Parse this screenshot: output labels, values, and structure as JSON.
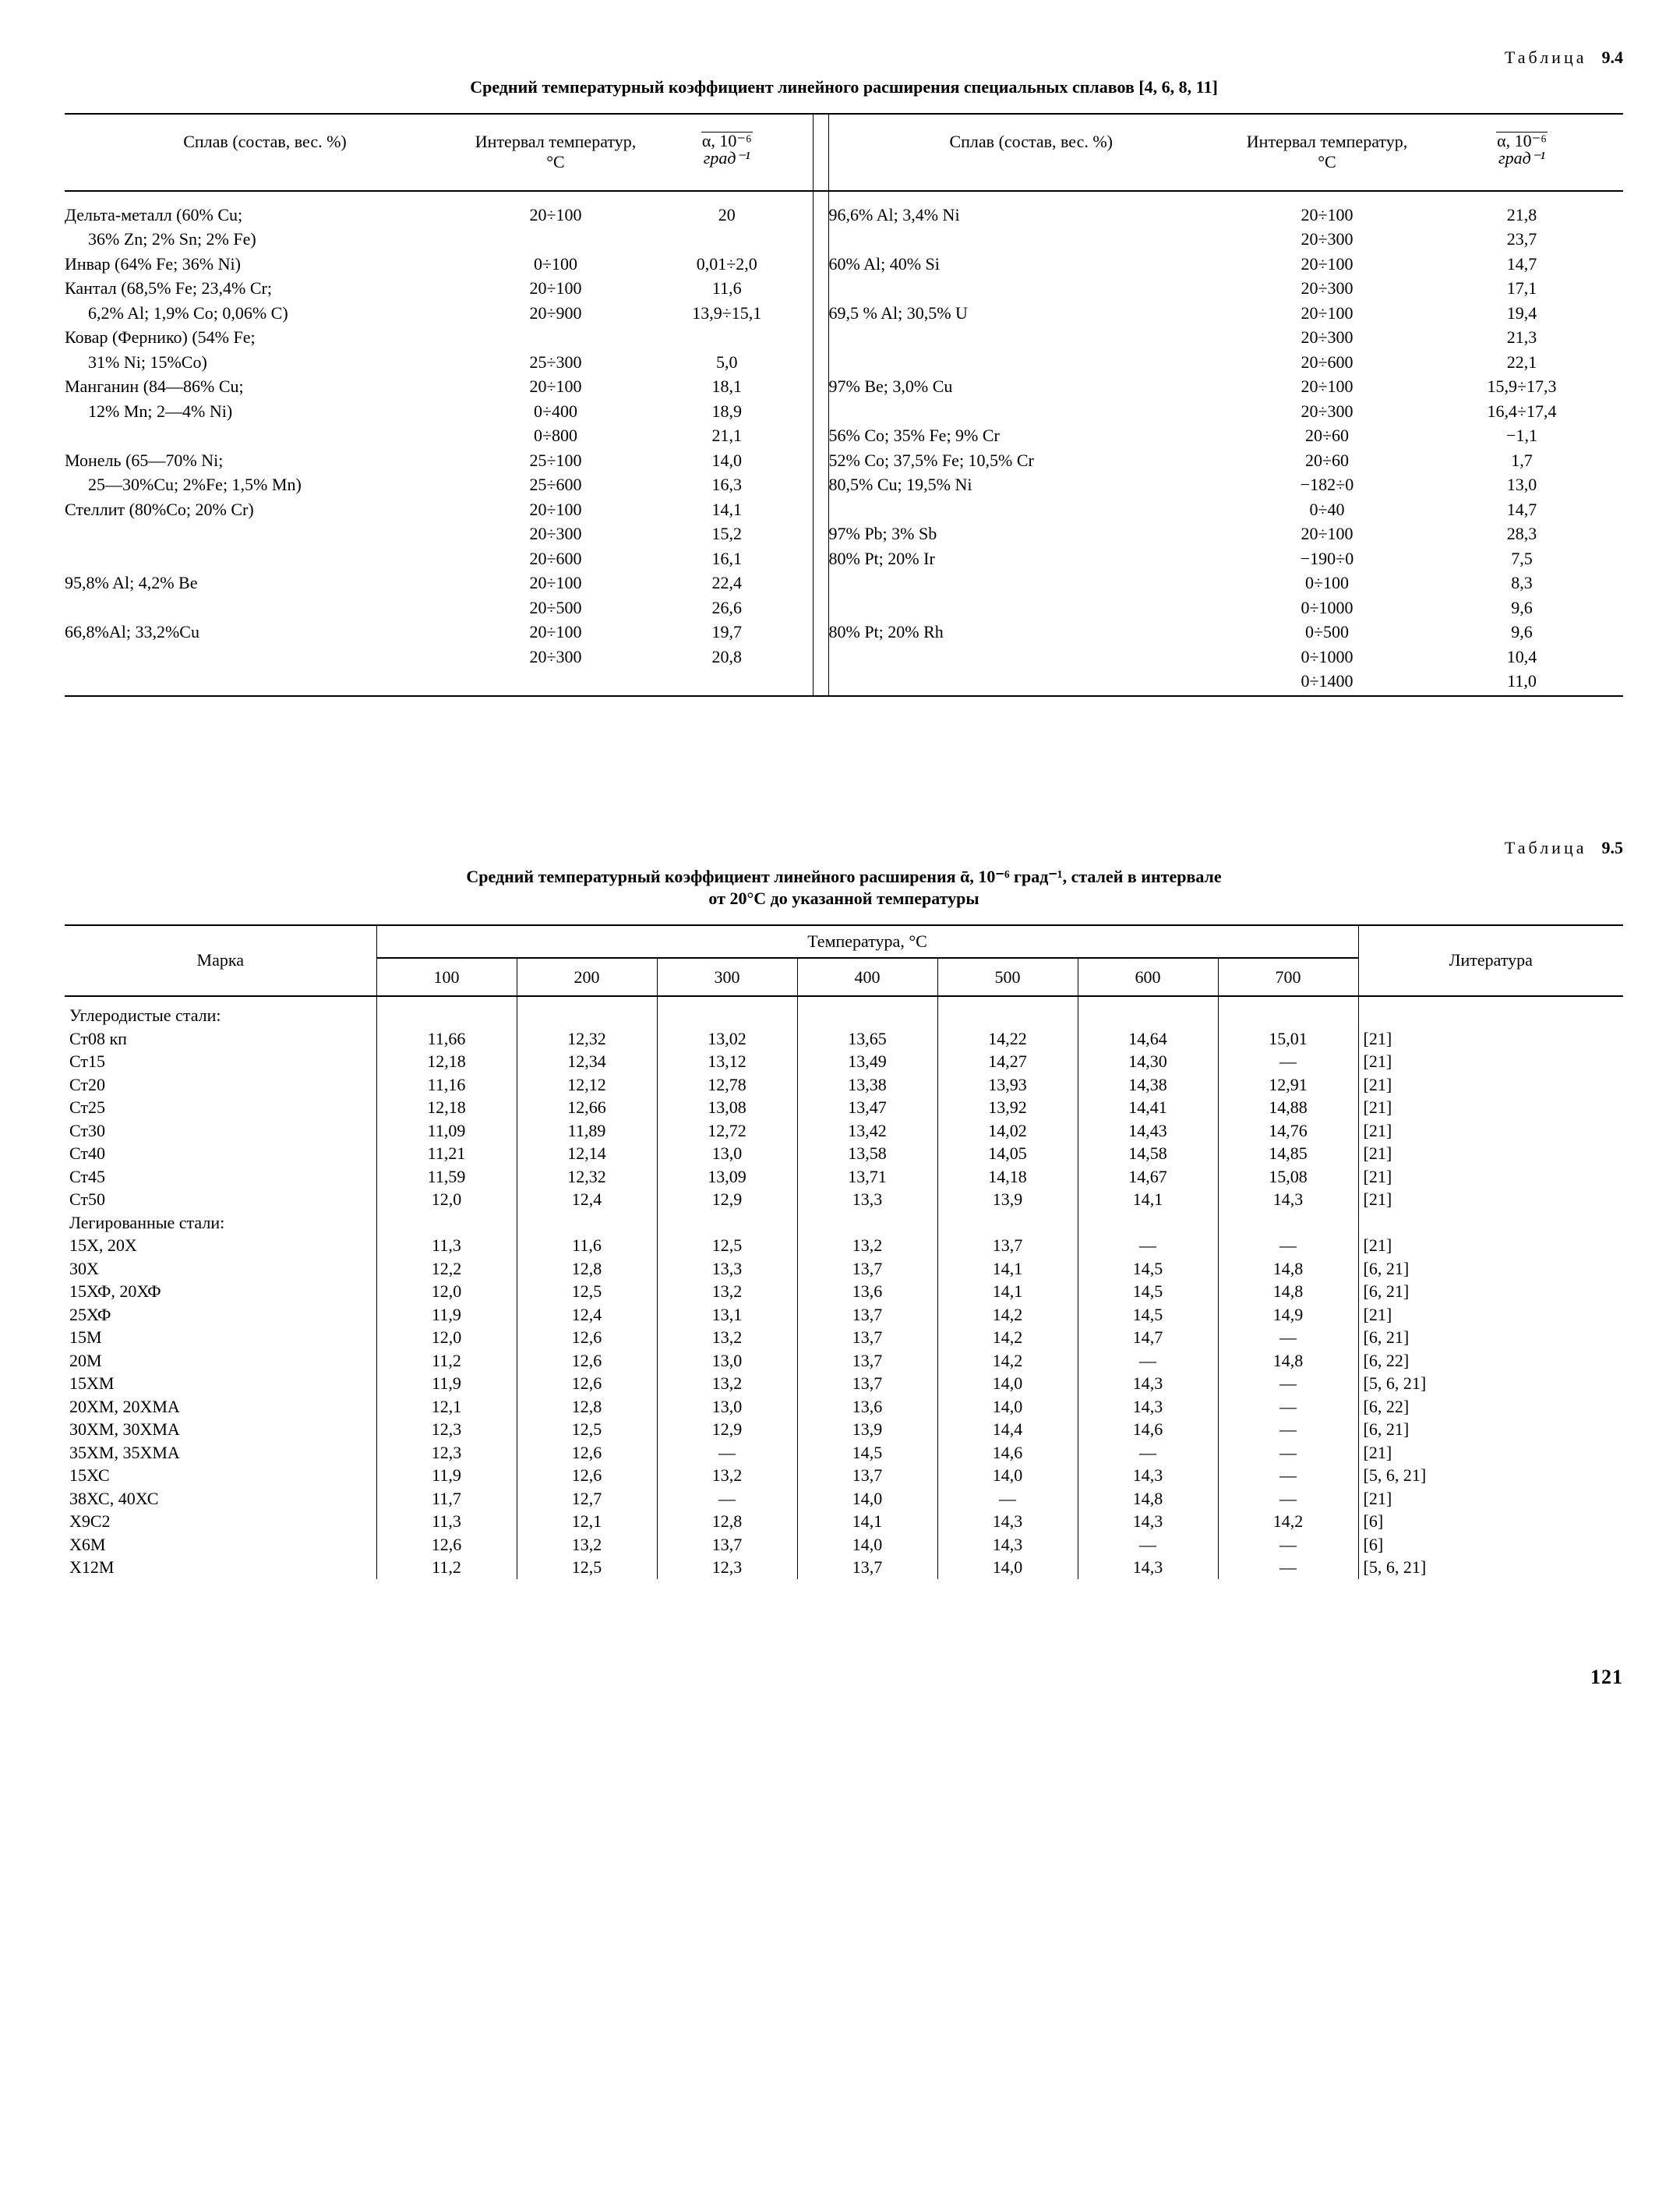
{
  "page_number": "121",
  "table94": {
    "label_prefix": "Таблица",
    "label_num": "9.4",
    "caption": "Средний температурный коэффициент линейного расширения специальных сплавов [4, 6, 8, 11]",
    "head": {
      "alloy": "Сплав (состав, вес. %)",
      "interval": "Интервал температур, °С",
      "alpha_unit_top": "α, 10⁻⁶",
      "alpha_unit_bot": "град⁻¹"
    },
    "left": [
      {
        "alloy": "Дельта-металл (60% Cu;",
        "t": "20÷100",
        "a": "20"
      },
      {
        "alloy_indent": "36% Zn; 2% Sn; 2% Fe)",
        "t": "",
        "a": ""
      },
      {
        "alloy": "Инвар (64% Fe; 36% Ni)",
        "t": "0÷100",
        "a": "0,01÷2,0"
      },
      {
        "alloy": "Кантал (68,5% Fe;  23,4% Cr;",
        "t": "20÷100",
        "a": "11,6"
      },
      {
        "alloy_indent": "6,2% Al; 1,9% Co; 0,06% C)",
        "t": "20÷900",
        "a": "13,9÷15,1"
      },
      {
        "alloy": "Ковар (Фернико)  (54% Fe;",
        "t": "",
        "a": ""
      },
      {
        "alloy_indent": "31% Ni; 15%Co)",
        "t": "25÷300",
        "a": "5,0"
      },
      {
        "alloy": "Манганин  (84—86% Cu;",
        "t": "20÷100",
        "a": "18,1"
      },
      {
        "alloy_indent": "12% Mn; 2—4% Ni)",
        "t": "0÷400",
        "a": "18,9"
      },
      {
        "alloy": "",
        "t": "0÷800",
        "a": "21,1"
      },
      {
        "alloy": "Монель  (65—70% Ni;",
        "t": "25÷100",
        "a": "14,0"
      },
      {
        "alloy_indent": "25—30%Cu; 2%Fe; 1,5% Mn)",
        "t": "25÷600",
        "a": "16,3"
      },
      {
        "alloy": "Стеллит (80%Co; 20% Cr)",
        "t": "20÷100",
        "a": "14,1"
      },
      {
        "alloy": "",
        "t": "20÷300",
        "a": "15,2"
      },
      {
        "alloy": "",
        "t": "20÷600",
        "a": "16,1"
      },
      {
        "alloy": "95,8% Al; 4,2% Be",
        "t": "20÷100",
        "a": "22,4"
      },
      {
        "alloy": "",
        "t": "20÷500",
        "a": "26,6"
      },
      {
        "alloy": "66,8%Al; 33,2%Cu",
        "t": "20÷100",
        "a": "19,7"
      },
      {
        "alloy": "",
        "t": "20÷300",
        "a": "20,8"
      }
    ],
    "right": [
      {
        "alloy": "96,6% Al; 3,4% Ni",
        "t": "20÷100",
        "a": "21,8"
      },
      {
        "alloy": "",
        "t": "20÷300",
        "a": "23,7"
      },
      {
        "alloy": "60% Al; 40% Si",
        "t": "20÷100",
        "a": "14,7"
      },
      {
        "alloy": "",
        "t": "20÷300",
        "a": "17,1"
      },
      {
        "alloy": "69,5 % Al; 30,5% U",
        "t": "20÷100",
        "a": "19,4"
      },
      {
        "alloy": "",
        "t": "20÷300",
        "a": "21,3"
      },
      {
        "alloy": "",
        "t": "20÷600",
        "a": "22,1"
      },
      {
        "alloy": "97% Be; 3,0% Cu",
        "t": "20÷100",
        "a": "15,9÷17,3"
      },
      {
        "alloy": "",
        "t": "20÷300",
        "a": "16,4÷17,4"
      },
      {
        "alloy": "56% Co; 35% Fe; 9% Cr",
        "t": "20÷60",
        "a": "−1,1"
      },
      {
        "alloy": "52% Co; 37,5% Fe; 10,5% Cr",
        "t": "20÷60",
        "a": "1,7"
      },
      {
        "alloy": "80,5% Cu; 19,5% Ni",
        "t": "−182÷0",
        "a": "13,0"
      },
      {
        "alloy": "",
        "t": "0÷40",
        "a": "14,7"
      },
      {
        "alloy": "97% Pb; 3% Sb",
        "t": "20÷100",
        "a": "28,3"
      },
      {
        "alloy": "80% Pt; 20% Ir",
        "t": "−190÷0",
        "a": "7,5"
      },
      {
        "alloy": "",
        "t": "0÷100",
        "a": "8,3"
      },
      {
        "alloy": "",
        "t": "0÷1000",
        "a": "9,6"
      },
      {
        "alloy": "80% Pt; 20% Rh",
        "t": "0÷500",
        "a": "9,6"
      },
      {
        "alloy": "",
        "t": "0÷1000",
        "a": "10,4"
      },
      {
        "alloy": "",
        "t": "0÷1400",
        "a": "11,0"
      }
    ]
  },
  "table95": {
    "label_prefix": "Таблица",
    "label_num": "9.5",
    "caption_line1": "Средний температурный коэффициент линейного расширения ᾱ, 10⁻⁶ град⁻¹, сталей в интервале",
    "caption_line2": "от 20°С до указанной температуры",
    "head": {
      "brand": "Марка",
      "temp_group": "Температура, °С",
      "lit": "Литература",
      "temps": [
        "100",
        "200",
        "300",
        "400",
        "500",
        "600",
        "700"
      ]
    },
    "section1": "Углеродистые стали:",
    "section2": "Легированные стали:",
    "rows1": [
      {
        "m": "Ст08 кп",
        "v": [
          "11,66",
          "12,32",
          "13,02",
          "13,65",
          "14,22",
          "14,64",
          "15,01"
        ],
        "l": "[21]"
      },
      {
        "m": "Ст15",
        "v": [
          "12,18",
          "12,34",
          "13,12",
          "13,49",
          "14,27",
          "14,30",
          "—"
        ],
        "l": "[21]"
      },
      {
        "m": "Ст20",
        "v": [
          "11,16",
          "12,12",
          "12,78",
          "13,38",
          "13,93",
          "14,38",
          "12,91"
        ],
        "l": "[21]"
      },
      {
        "m": "Ст25",
        "v": [
          "12,18",
          "12,66",
          "13,08",
          "13,47",
          "13,92",
          "14,41",
          "14,88"
        ],
        "l": "[21]"
      },
      {
        "m": "Ст30",
        "v": [
          "11,09",
          "11,89",
          "12,72",
          "13,42",
          "14,02",
          "14,43",
          "14,76"
        ],
        "l": "[21]"
      },
      {
        "m": "Ст40",
        "v": [
          "11,21",
          "12,14",
          "13,0",
          "13,58",
          "14,05",
          "14,58",
          "14,85"
        ],
        "l": "[21]"
      },
      {
        "m": "Ст45",
        "v": [
          "11,59",
          "12,32",
          "13,09",
          "13,71",
          "14,18",
          "14,67",
          "15,08"
        ],
        "l": "[21]"
      },
      {
        "m": "Ст50",
        "v": [
          "12,0",
          "12,4",
          "12,9",
          "13,3",
          "13,9",
          "14,1",
          "14,3"
        ],
        "l": "[21]"
      }
    ],
    "rows2": [
      {
        "m": "15Х, 20Х",
        "v": [
          "11,3",
          "11,6",
          "12,5",
          "13,2",
          "13,7",
          "—",
          "—"
        ],
        "l": "[21]"
      },
      {
        "m": "30Х",
        "v": [
          "12,2",
          "12,8",
          "13,3",
          "13,7",
          "14,1",
          "14,5",
          "14,8"
        ],
        "l": "[6, 21]"
      },
      {
        "m": "15ХФ, 20ХФ",
        "v": [
          "12,0",
          "12,5",
          "13,2",
          "13,6",
          "14,1",
          "14,5",
          "14,8"
        ],
        "l": "[6, 21]"
      },
      {
        "m": "25ХФ",
        "v": [
          "11,9",
          "12,4",
          "13,1",
          "13,7",
          "14,2",
          "14,5",
          "14,9"
        ],
        "l": "[21]"
      },
      {
        "m": "15М",
        "v": [
          "12,0",
          "12,6",
          "13,2",
          "13,7",
          "14,2",
          "14,7",
          "—"
        ],
        "l": "[6, 21]"
      },
      {
        "m": "20М",
        "v": [
          "11,2",
          "12,6",
          "13,0",
          "13,7",
          "14,2",
          "—",
          "14,8"
        ],
        "l": "[6, 22]"
      },
      {
        "m": "15ХМ",
        "v": [
          "11,9",
          "12,6",
          "13,2",
          "13,7",
          "14,0",
          "14,3",
          "—"
        ],
        "l": "[5, 6, 21]"
      },
      {
        "m": "20ХМ, 20ХМА",
        "v": [
          "12,1",
          "12,8",
          "13,0",
          "13,6",
          "14,0",
          "14,3",
          "—"
        ],
        "l": "[6, 22]"
      },
      {
        "m": "30ХМ, 30ХМА",
        "v": [
          "12,3",
          "12,5",
          "12,9",
          "13,9",
          "14,4",
          "14,6",
          "—"
        ],
        "l": "[6, 21]"
      },
      {
        "m": "35ХМ, 35ХМА",
        "v": [
          "12,3",
          "12,6",
          "—",
          "14,5",
          "14,6",
          "—",
          "—"
        ],
        "l": "[21]"
      },
      {
        "m": "15ХС",
        "v": [
          "11,9",
          "12,6",
          "13,2",
          "13,7",
          "14,0",
          "14,3",
          "—"
        ],
        "l": "[5, 6, 21]"
      },
      {
        "m": "38ХС, 40ХС",
        "v": [
          "11,7",
          "12,7",
          "—",
          "14,0",
          "—",
          "14,8",
          "—"
        ],
        "l": "[21]"
      },
      {
        "m": "Х9С2",
        "v": [
          "11,3",
          "12,1",
          "12,8",
          "14,1",
          "14,3",
          "14,3",
          "14,2"
        ],
        "l": "[6]"
      },
      {
        "m": "Х6М",
        "v": [
          "12,6",
          "13,2",
          "13,7",
          "14,0",
          "14,3",
          "—",
          "—"
        ],
        "l": "[6]"
      },
      {
        "m": "Х12М",
        "v": [
          "11,2",
          "12,5",
          "12,3",
          "13,7",
          "14,0",
          "14,3",
          "—"
        ],
        "l": "[5, 6, 21]"
      }
    ]
  }
}
